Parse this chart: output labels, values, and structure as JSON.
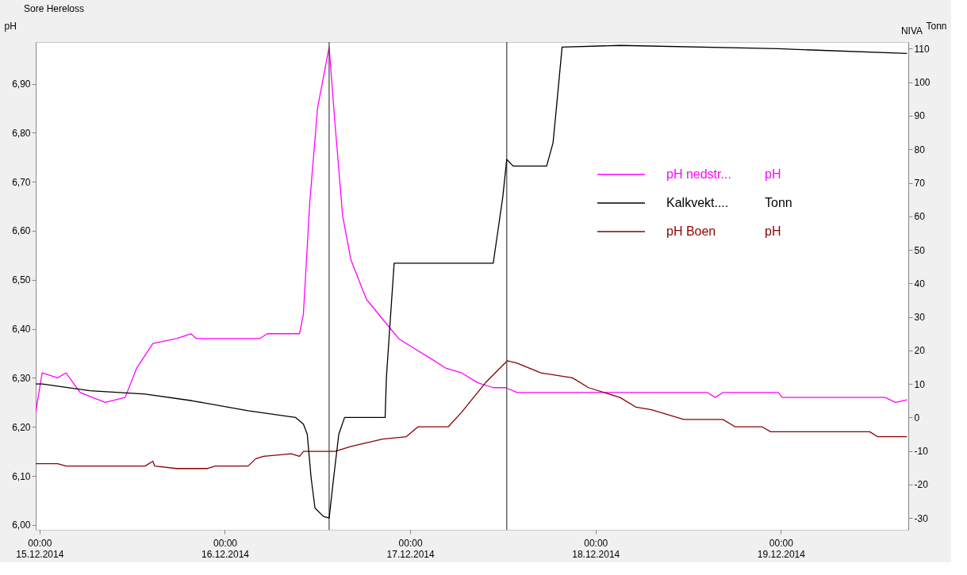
{
  "chart_data": {
    "type": "line",
    "title": "Sore Hereloss",
    "ylabel": "pH",
    "y2label": "Tonn",
    "annotations": [
      "NIVA",
      "pH",
      "Tonn",
      "pH"
    ],
    "xlim": [
      "2014-12-14T23:30",
      "2014-12-19T16:30"
    ],
    "xticks": [
      {
        "value": "2014-12-15",
        "label": "00:00 15.12.2014"
      },
      {
        "value": "2014-12-16",
        "label": "00:00 16.12.2014"
      },
      {
        "value": "2014-12-17",
        "label": "00:00 17.12.2014"
      },
      {
        "value": "2014-12-18",
        "label": "00:00 18.12.2014"
      },
      {
        "value": "2014-12-19",
        "label": "00:00 19.12.2014"
      }
    ],
    "ylim": [
      5.99,
      6.985
    ],
    "yticks": [
      {
        "value": 6.0,
        "label": "6,00"
      },
      {
        "value": 6.1,
        "label": "6,10"
      },
      {
        "value": 6.2,
        "label": "6,20"
      },
      {
        "value": 6.3,
        "label": "6,30"
      },
      {
        "value": 6.4,
        "label": "6,40"
      },
      {
        "value": 6.5,
        "label": "6,50"
      },
      {
        "value": 6.6,
        "label": "6,60"
      },
      {
        "value": 6.7,
        "label": "6,70"
      },
      {
        "value": 6.8,
        "label": "6,80"
      },
      {
        "value": 6.9,
        "label": "6,90"
      }
    ],
    "y2lim": [
      -33.5,
      112
    ],
    "y2ticks": [
      -30,
      -20,
      -10,
      0,
      10,
      20,
      30,
      40,
      50,
      60,
      70,
      80,
      90,
      100,
      110
    ],
    "grid": false,
    "legend": "right",
    "line_style": "solid",
    "marker": "none",
    "ref_lines": [
      {
        "axis": "x",
        "value": "2014-12-16T13:30",
        "color": "#404040"
      },
      {
        "axis": "x",
        "value": "2014-12-17T12:30",
        "color": "#404040"
      }
    ],
    "series": [
      {
        "name": "pH nedstr...",
        "color": "#ff00ff",
        "x": [
          "2014-12-14T23:30",
          "2014-12-15T00:20",
          "2014-12-15T02:20",
          "2014-12-15T03:25",
          "2014-12-15T05:15",
          "2014-12-15T08:30",
          "2014-12-15T11:05",
          "2014-12-15T12:35",
          "2014-12-15T14:40",
          "2014-12-15T17:45",
          "2014-12-15T19:35",
          "2014-12-15T20:20",
          "2014-12-16T04:30",
          "2014-12-16T05:30",
          "2014-12-16T09:40",
          "2014-12-16T10:10",
          "2014-12-16T11:00",
          "2014-12-16T12:00",
          "2014-12-16T13:30",
          "2014-12-16T14:15",
          "2014-12-16T15:15",
          "2014-12-16T16:20",
          "2014-12-16T18:20",
          "2014-12-16T20:25",
          "2014-12-16T22:30",
          "2014-12-17T00:30",
          "2014-12-17T02:35",
          "2014-12-17T04:35",
          "2014-12-17T06:40",
          "2014-12-17T08:45",
          "2014-12-17T10:45",
          "2014-12-17T12:20",
          "2014-12-17T13:50",
          "2014-12-17T15:55",
          "2014-12-18T14:30",
          "2014-12-18T15:30",
          "2014-12-18T16:30",
          "2014-12-18T23:40",
          "2014-12-19T00:10",
          "2014-12-19T13:30",
          "2014-12-19T14:50",
          "2014-12-19T16:20"
        ],
        "values": [
          6.23,
          6.31,
          6.3,
          6.31,
          6.27,
          6.25,
          6.26,
          6.32,
          6.37,
          6.38,
          6.39,
          6.38,
          6.38,
          6.39,
          6.39,
          6.43,
          6.66,
          6.85,
          6.975,
          6.82,
          6.63,
          6.54,
          6.46,
          6.42,
          6.38,
          6.36,
          6.34,
          6.32,
          6.31,
          6.29,
          6.28,
          6.28,
          6.27,
          6.27,
          6.27,
          6.26,
          6.27,
          6.27,
          6.26,
          6.26,
          6.25,
          6.255
        ]
      },
      {
        "name": "Kalkvekt....",
        "color": "#000000",
        "axis": "y2",
        "x": [
          "2014-12-14T23:30",
          "2014-12-15T00:20",
          "2014-12-15T06:30",
          "2014-12-15T13:40",
          "2014-12-15T19:45",
          "2014-12-16T03:00",
          "2014-12-16T09:10",
          "2014-12-16T10:10",
          "2014-12-16T10:40",
          "2014-12-16T11:10",
          "2014-12-16T11:40",
          "2014-12-16T12:45",
          "2014-12-16T13:30",
          "2014-12-16T14:05",
          "2014-12-16T14:45",
          "2014-12-16T15:30",
          "2014-12-16T20:45",
          "2014-12-16T20:55",
          "2014-12-16T21:55",
          "2014-12-17T10:45",
          "2014-12-17T12:00",
          "2014-12-17T12:30",
          "2014-12-17T13:20",
          "2014-12-17T17:40",
          "2014-12-17T18:30",
          "2014-12-17T19:00",
          "2014-12-17T19:40",
          "2014-12-18T03:10",
          "2014-12-18T23:40",
          "2014-12-19T16:20"
        ],
        "values": [
          10,
          10,
          8,
          7,
          5,
          2,
          0,
          -2,
          -5,
          -18,
          -27,
          -29.5,
          -30,
          -18,
          -5,
          0,
          0,
          12,
          46,
          46,
          66,
          77,
          75,
          75,
          82,
          94,
          110.5,
          111,
          110,
          108.6
        ]
      },
      {
        "name": "pH Boen",
        "color": "#8b0000",
        "x": [
          "2014-12-14T23:30",
          "2014-12-15T02:20",
          "2014-12-15T03:25",
          "2014-12-15T13:40",
          "2014-12-15T14:40",
          "2014-12-15T14:55",
          "2014-12-15T17:45",
          "2014-12-15T21:45",
          "2014-12-15T22:45",
          "2014-12-16T03:00",
          "2014-12-16T04:00",
          "2014-12-16T05:00",
          "2014-12-16T08:35",
          "2014-12-16T09:40",
          "2014-12-16T10:10",
          "2014-12-16T14:15",
          "2014-12-16T16:20",
          "2014-12-16T20:25",
          "2014-12-16T23:30",
          "2014-12-17T01:00",
          "2014-12-17T04:55",
          "2014-12-17T06:40",
          "2014-12-17T09:45",
          "2014-12-17T12:35",
          "2014-12-17T13:50",
          "2014-12-17T16:55",
          "2014-12-17T21:00",
          "2014-12-17T23:05",
          "2014-12-18T03:10",
          "2014-12-18T05:15",
          "2014-12-18T07:15",
          "2014-12-18T11:25",
          "2014-12-18T16:30",
          "2014-12-18T18:05",
          "2014-12-18T21:35",
          "2014-12-18T22:40",
          "2014-12-19T11:30",
          "2014-12-19T12:30",
          "2014-12-19T16:20"
        ],
        "values": [
          6.125,
          6.125,
          6.12,
          6.12,
          6.13,
          6.12,
          6.115,
          6.115,
          6.12,
          6.12,
          6.135,
          6.14,
          6.145,
          6.14,
          6.15,
          6.15,
          6.16,
          6.175,
          6.18,
          6.2,
          6.2,
          6.23,
          6.29,
          6.335,
          6.33,
          6.31,
          6.3,
          6.28,
          6.26,
          6.24,
          6.235,
          6.215,
          6.215,
          6.2,
          6.2,
          6.19,
          6.19,
          6.18,
          6.18
        ]
      }
    ]
  }
}
